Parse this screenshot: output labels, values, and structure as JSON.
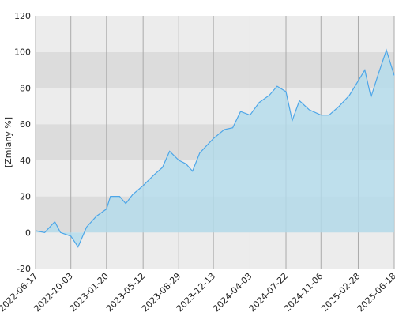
{
  "chart_data": {
    "type": "area",
    "y_label": "[Zmiany %]",
    "x": [
      "2022-06-17",
      "2022-07-15",
      "2022-08-15",
      "2022-09-01",
      "2022-10-03",
      "2022-10-25",
      "2022-11-20",
      "2022-12-20",
      "2023-01-20",
      "2023-02-01",
      "2023-03-01",
      "2023-03-20",
      "2023-04-10",
      "2023-05-12",
      "2023-06-15",
      "2023-07-10",
      "2023-08-01",
      "2023-08-29",
      "2023-09-20",
      "2023-10-10",
      "2023-11-01",
      "2023-12-13",
      "2024-01-15",
      "2024-02-10",
      "2024-03-05",
      "2024-04-03",
      "2024-05-01",
      "2024-06-01",
      "2024-06-25",
      "2024-07-22",
      "2024-08-10",
      "2024-09-01",
      "2024-10-01",
      "2024-11-06",
      "2024-12-01",
      "2025-01-01",
      "2025-02-01",
      "2025-02-28",
      "2025-03-20",
      "2025-04-08",
      "2025-05-01",
      "2025-05-25",
      "2025-06-18"
    ],
    "series": [
      {
        "color": "#4da6e8",
        "fill": "#b3dcec",
        "values": [
          1,
          0,
          6,
          0,
          -2,
          -8,
          3,
          9,
          13,
          20,
          20,
          16,
          21,
          26,
          32,
          36,
          45,
          40,
          38,
          34,
          44,
          52,
          57,
          58,
          67,
          65,
          72,
          76,
          81,
          78,
          62,
          73,
          68,
          65,
          65,
          70,
          76,
          84,
          90,
          75,
          88,
          101,
          87
        ]
      }
    ],
    "xlim": [
      "2022-06-17",
      "2025-06-18"
    ],
    "xticks": [
      "2022-06-17",
      "2022-10-03",
      "2023-01-20",
      "2023-05-12",
      "2023-08-29",
      "2023-12-13",
      "2024-04-03",
      "2024-07-22",
      "2024-11-06",
      "2025-02-28",
      "2025-06-18"
    ],
    "ylim": [
      -20,
      120
    ],
    "yticks": [
      -20,
      0,
      20,
      40,
      60,
      80,
      100,
      120
    ],
    "grid": true
  }
}
